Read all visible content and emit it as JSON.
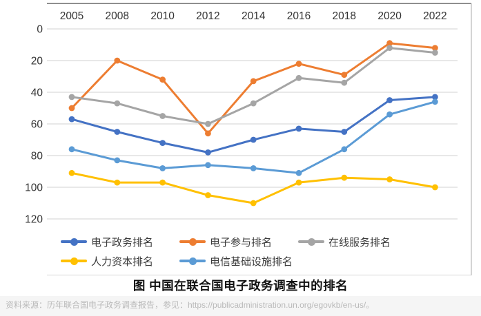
{
  "figure": {
    "caption": "图 中国在联合国电子政务调查中的排名",
    "source_note": "资料来源：历年联合国电子政务调查报告，参见：https://publicadministration.un.org/egovkb/en-us/。"
  },
  "colors": {
    "background": "#ffffff",
    "gridline": "#d9d9d9",
    "border_top": "#8f8f8f",
    "border_side": "#c6c6c6",
    "tick_label": "#333333",
    "legend_label": "#3b3b3b",
    "caption_text": "#111111",
    "source_text": "#b9b9b9",
    "source_bg": "#f5f5f5"
  },
  "chart_data": {
    "type": "line",
    "title": "图 中国在联合国电子政务调查中的排名",
    "categories": [
      "2005",
      "2008",
      "2010",
      "2012",
      "2014",
      "2016",
      "2018",
      "2020",
      "2022"
    ],
    "y_axis": {
      "ticks": [
        0,
        20,
        40,
        60,
        80,
        100,
        120
      ],
      "min": 0,
      "max": 120,
      "reversed": true
    },
    "grid": true,
    "legend_position": "bottom",
    "marker": "circle",
    "series": [
      {
        "id": "e-government-ranking",
        "name": "电子政务排名",
        "color": "#4472C4",
        "values": [
          57,
          65,
          72,
          78,
          70,
          63,
          65,
          45,
          43
        ]
      },
      {
        "id": "e-participation-ranking",
        "name": "电子参与排名",
        "color": "#ED7D31",
        "values": [
          50,
          20,
          32,
          66,
          33,
          22,
          29,
          9,
          12
        ]
      },
      {
        "id": "online-services-ranking",
        "name": "在线服务排名",
        "color": "#A5A5A5",
        "values": [
          43,
          47,
          55,
          60,
          47,
          31,
          34,
          12,
          15
        ]
      },
      {
        "id": "human-capital-ranking",
        "name": "人力资本排名",
        "color": "#FFC000",
        "values": [
          91,
          97,
          97,
          105,
          110,
          97,
          94,
          95,
          100
        ]
      },
      {
        "id": "telecom-infrastructure-ranking",
        "name": "电信基础设施排名",
        "color": "#5B9BD5",
        "values": [
          76,
          83,
          88,
          86,
          88,
          91,
          76,
          54,
          46
        ]
      }
    ]
  }
}
